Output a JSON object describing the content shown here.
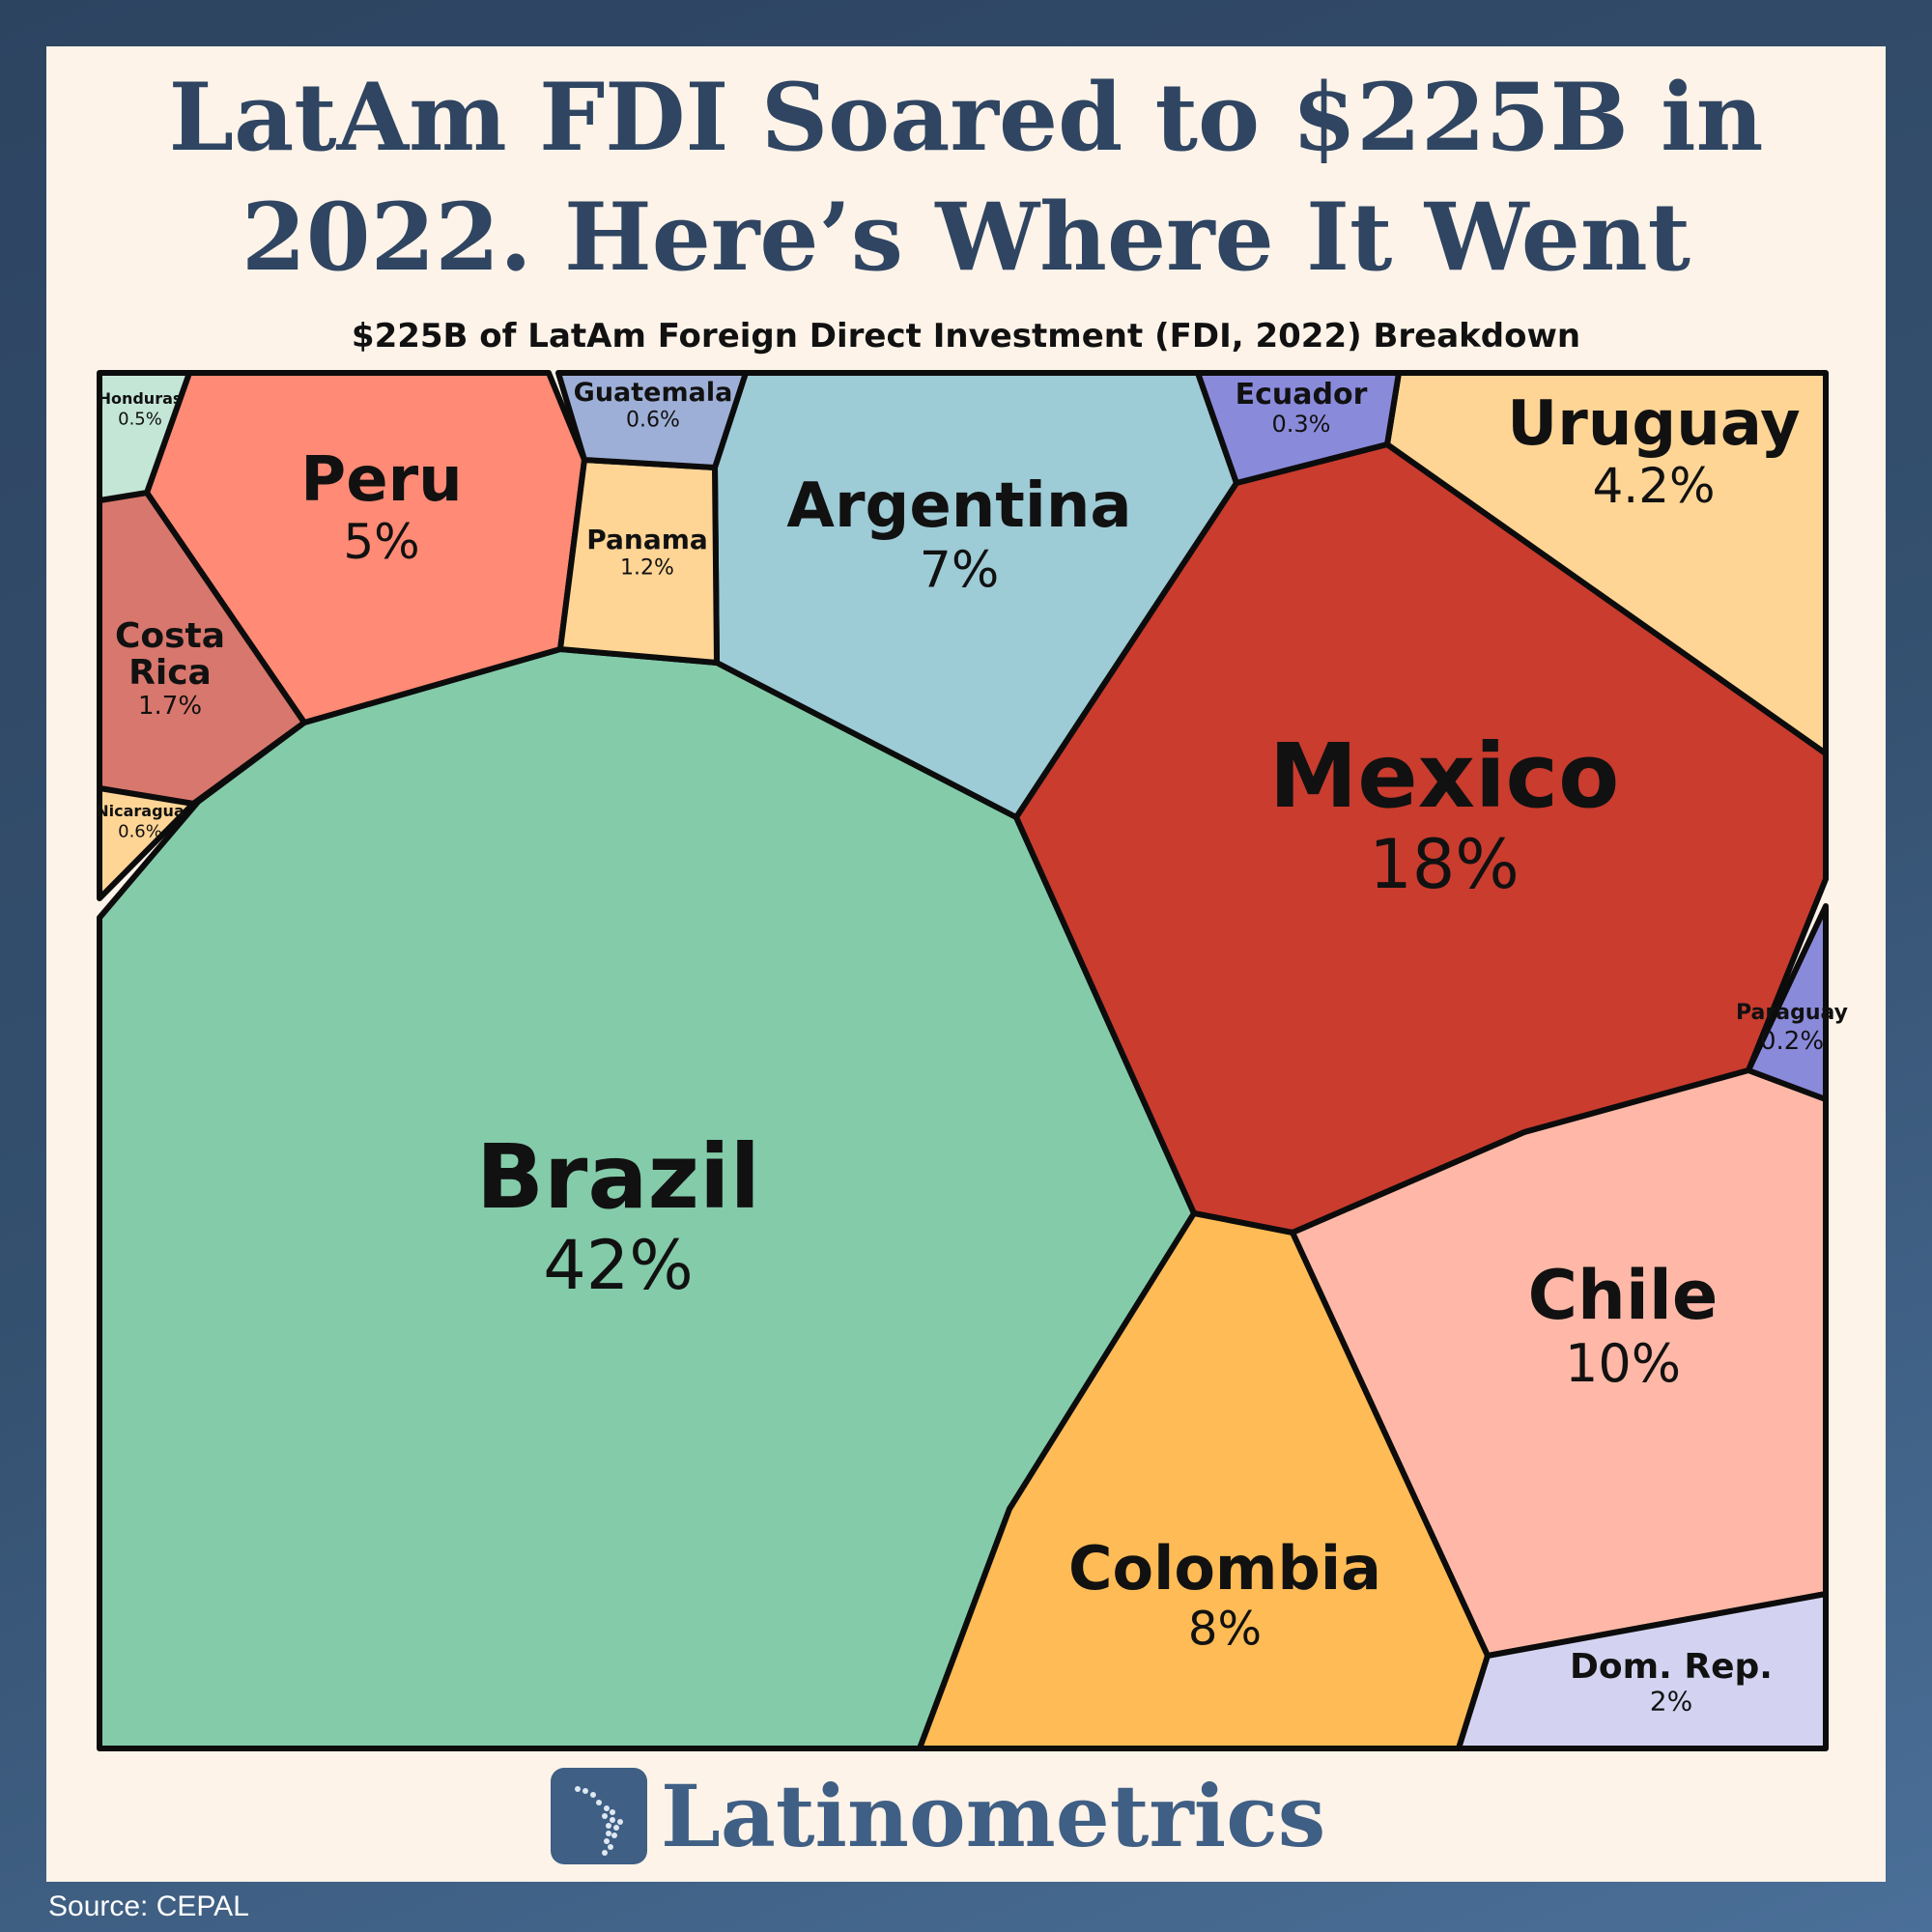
{
  "title_line1": "LatAm FDI Soared to $225B in",
  "title_line2": "2022. Here’s Where It Went",
  "subtitle": "$225B of LatAm Foreign Direct Investment (FDI, 2022) Breakdown",
  "brand": "Latinometrics",
  "source": "Source: CEPAL",
  "chart_data": {
    "type": "voronoi-treemap",
    "total": "$225B",
    "unit": "%",
    "series": [
      {
        "label": "Brazil",
        "value": 42,
        "display": "42%",
        "color": "#84cbaa"
      },
      {
        "label": "Mexico",
        "value": 18,
        "display": "18%",
        "color": "#c93c2e"
      },
      {
        "label": "Chile",
        "value": 10,
        "display": "10%",
        "color": "#ffb8a7"
      },
      {
        "label": "Colombia",
        "value": 8,
        "display": "8%",
        "color": "#ffbb55"
      },
      {
        "label": "Argentina",
        "value": 7,
        "display": "7%",
        "color": "#9dcbd6"
      },
      {
        "label": "Peru",
        "value": 5,
        "display": "5%",
        "color": "#ff8a75"
      },
      {
        "label": "Uruguay",
        "value": 4.2,
        "display": "4.2%",
        "color": "#ffd596"
      },
      {
        "label": "Dom. Rep.",
        "value": 2,
        "display": "2%",
        "color": "#d3d3f1"
      },
      {
        "label": "Costa Rica",
        "value": 1.7,
        "display": "1.7%",
        "color": "#d8776d"
      },
      {
        "label": "Panama",
        "value": 1.2,
        "display": "1.2%",
        "color": "#ffd596"
      },
      {
        "label": "Guatemala",
        "value": 0.6,
        "display": "0.6%",
        "color": "#9eafd7"
      },
      {
        "label": "Nicaragua",
        "value": 0.6,
        "display": "0.6%",
        "color": "#ffd596"
      },
      {
        "label": "Honduras",
        "value": 0.5,
        "display": "0.5%",
        "color": "#c3e6d7"
      },
      {
        "label": "Ecuador",
        "value": 0.3,
        "display": "0.3%",
        "color": "#8a8adb"
      },
      {
        "label": "Paraguay",
        "value": 0.2,
        "display": "0.2%",
        "color": "#8a8adb"
      }
    ]
  }
}
